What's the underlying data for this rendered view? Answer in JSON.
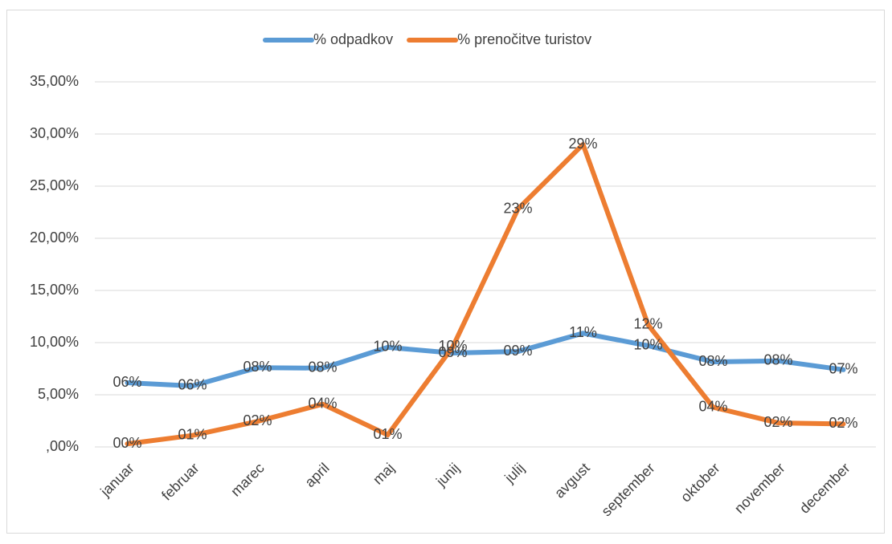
{
  "chart_data": {
    "type": "line",
    "categories": [
      "januar",
      "februar",
      "marec",
      "april",
      "maj",
      "junij",
      "julij",
      "avgust",
      "september",
      "oktober",
      "november",
      "december"
    ],
    "series": [
      {
        "name": "% odpadkov",
        "color": "#5b9bd5",
        "values": [
          6.15,
          5.85,
          7.6,
          7.55,
          9.55,
          9.0,
          9.15,
          10.9,
          9.7,
          8.15,
          8.25,
          7.4
        ],
        "value_labels": [
          "06%",
          "06%",
          "08%",
          "08%",
          "10%",
          "09%",
          "09%",
          "11%",
          "10%",
          "08%",
          "08%",
          "07%"
        ]
      },
      {
        "name": "% prenočitve turistov",
        "color": "#ed7d31",
        "values": [
          0.3,
          1.1,
          2.45,
          4.1,
          1.15,
          9.6,
          22.8,
          29.0,
          11.7,
          3.8,
          2.3,
          2.2
        ],
        "value_labels": [
          "00%",
          "01%",
          "02%",
          "04%",
          "01%",
          "10%",
          "23%",
          "29%",
          "12%",
          "04%",
          "02%",
          "02%"
        ]
      }
    ],
    "ylim": [
      0,
      35
    ],
    "yticks": [
      {
        "value": 0,
        "label": ",00%"
      },
      {
        "value": 5,
        "label": "5,00%"
      },
      {
        "value": 10,
        "label": "10,00%"
      },
      {
        "value": 15,
        "label": "15,00%"
      },
      {
        "value": 20,
        "label": "20,00%"
      },
      {
        "value": 25,
        "label": "25,00%"
      },
      {
        "value": 30,
        "label": "30,00%"
      },
      {
        "value": 35,
        "label": "35,00%"
      }
    ],
    "grid": true,
    "legend": "top"
  }
}
